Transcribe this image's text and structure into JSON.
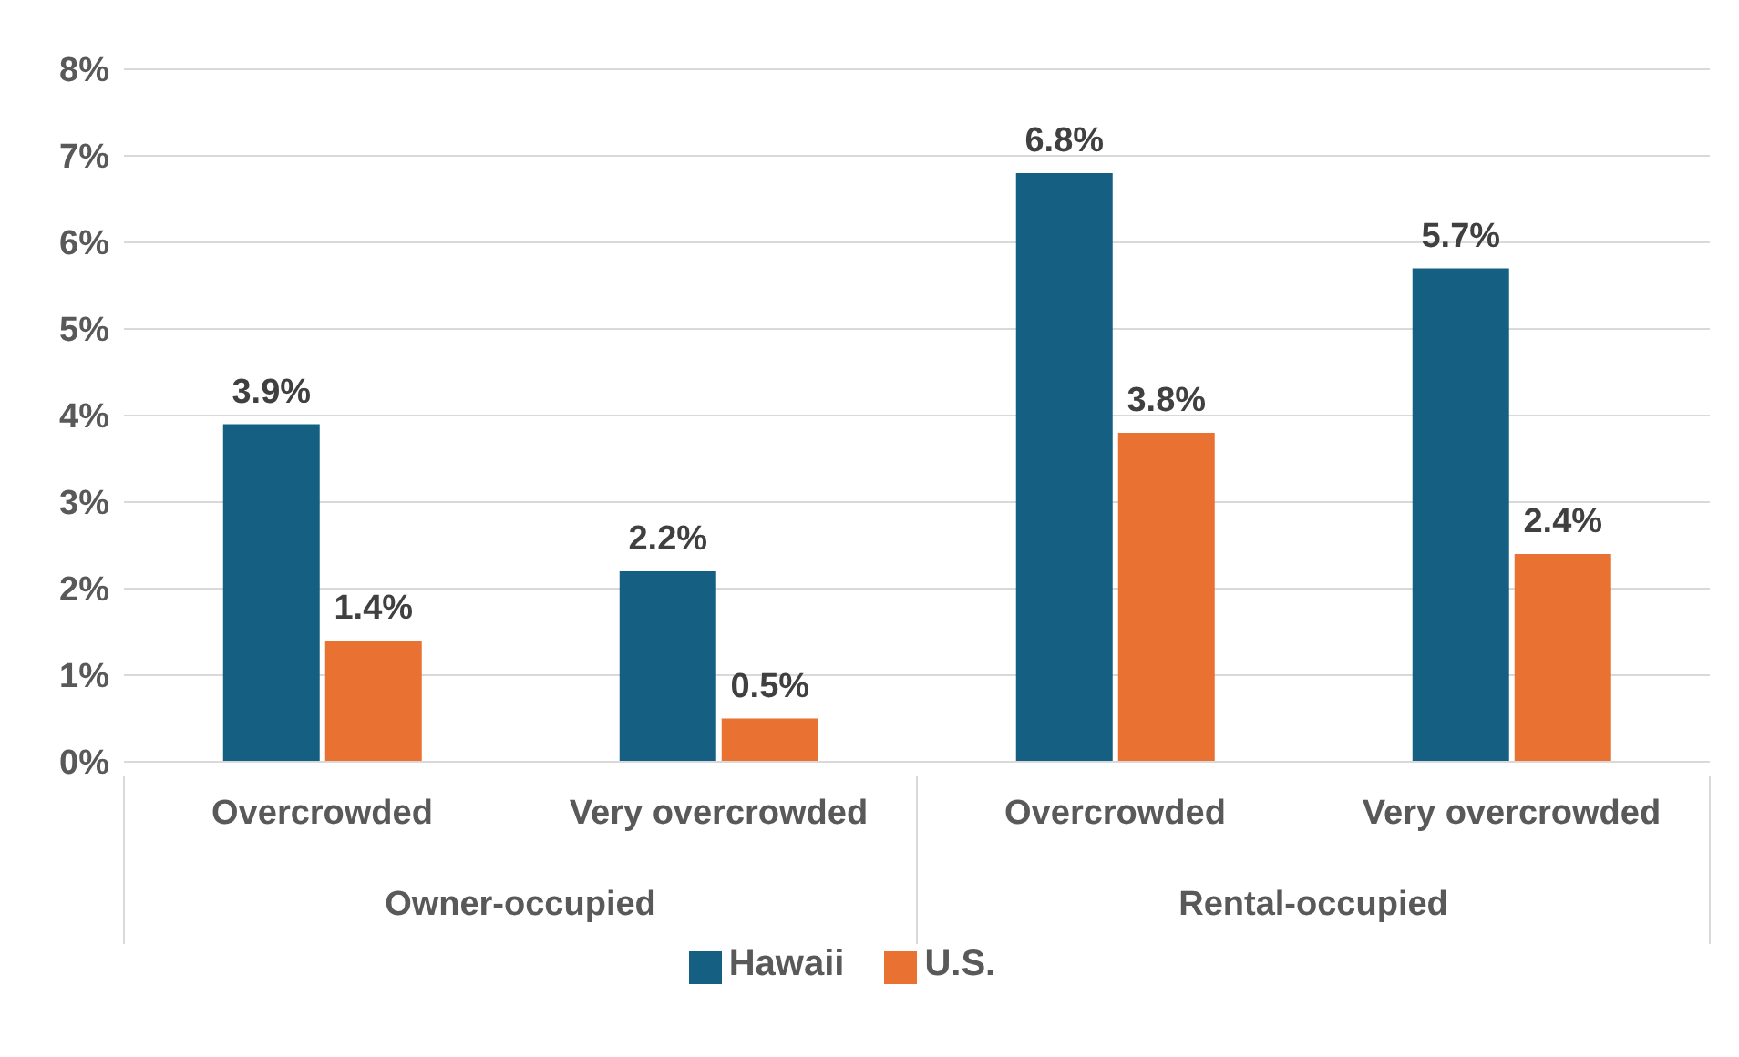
{
  "chart_data": {
    "type": "bar",
    "categories": [
      "Overcrowded",
      "Very overcrowded",
      "Overcrowded",
      "Very overcrowded"
    ],
    "annotations": [
      "Owner-occupied",
      "Rental-occupied"
    ],
    "series": [
      {
        "name": "Hawaii",
        "color": "#156082",
        "values": [
          3.9,
          2.2,
          6.8,
          5.7
        ],
        "value_labels": [
          "3.9%",
          "2.2%",
          "6.8%",
          "5.7%"
        ]
      },
      {
        "name": "U.S.",
        "color": "#e97132",
        "values": [
          1.4,
          0.5,
          3.8,
          2.4
        ],
        "value_labels": [
          "1.4%",
          "0.5%",
          "3.8%",
          "2.4%"
        ]
      }
    ],
    "ylim": [
      0,
      8
    ],
    "yticks": [
      {
        "value": 0,
        "label": "0%"
      },
      {
        "value": 1,
        "label": "1%"
      },
      {
        "value": 2,
        "label": "2%"
      },
      {
        "value": 3,
        "label": "3%"
      },
      {
        "value": 4,
        "label": "4%"
      },
      {
        "value": 5,
        "label": "5%"
      },
      {
        "value": 6,
        "label": "6%"
      },
      {
        "value": 7,
        "label": "7%"
      },
      {
        "value": 8,
        "label": "8%"
      }
    ],
    "grid": "y",
    "legend": "bottom"
  }
}
